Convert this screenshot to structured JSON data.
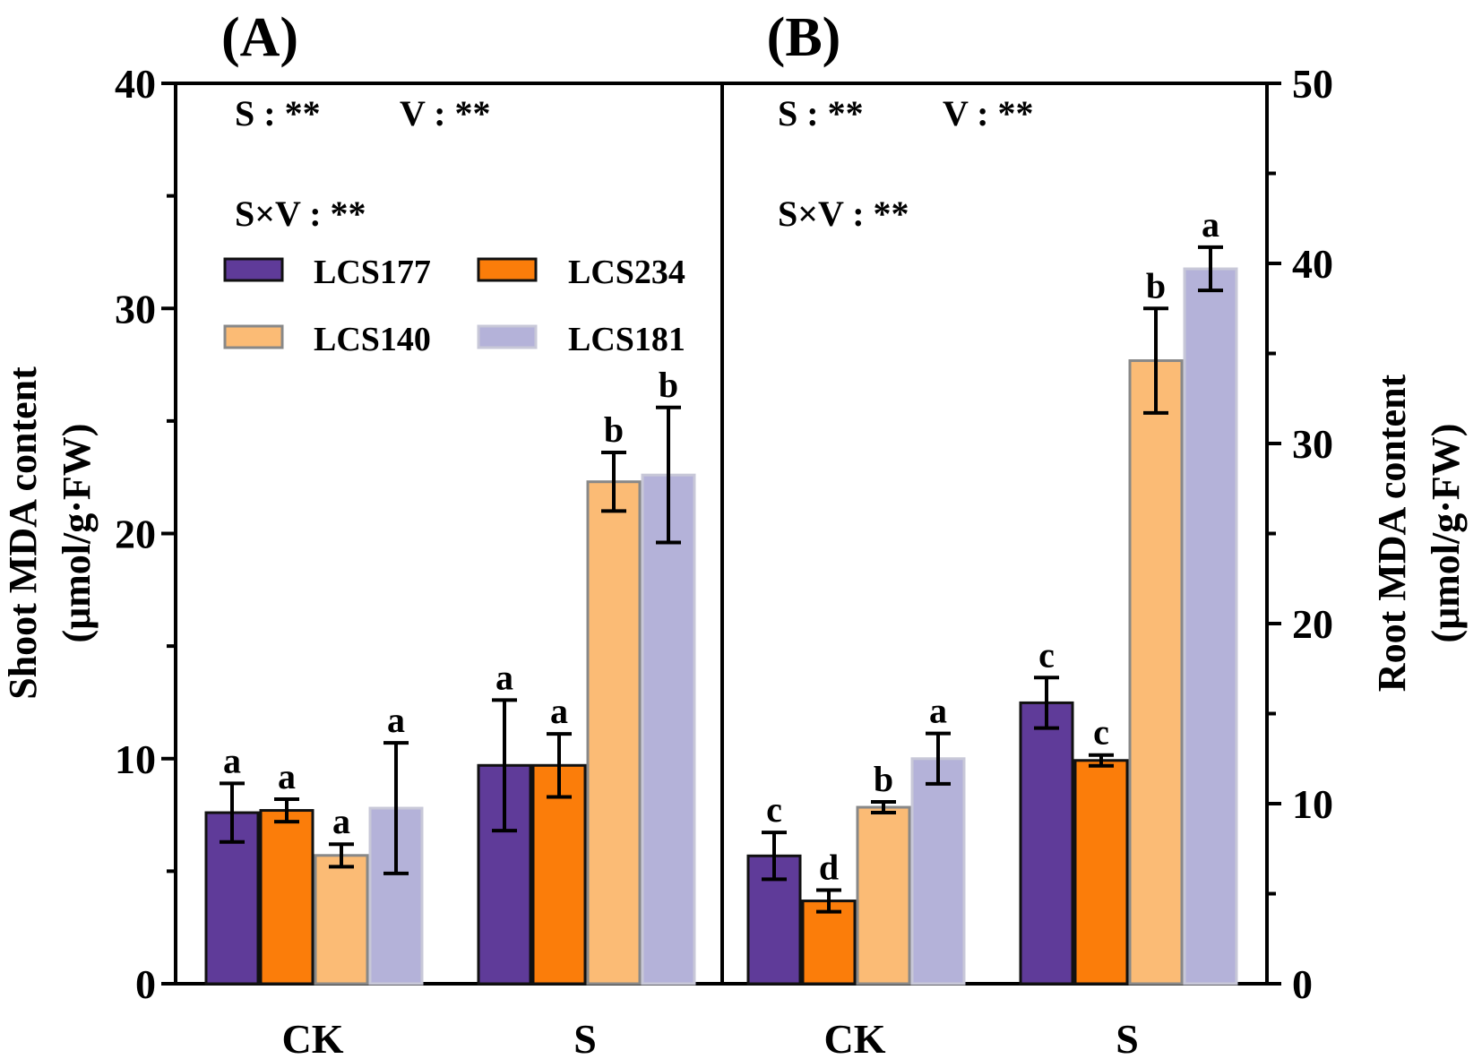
{
  "colors": {
    "LCS177": "#5f3b99",
    "LCS234": "#fb7d0a",
    "LCS140": "#fbbb75",
    "LCS181": "#b4b2d9"
  },
  "chart_data": [
    {
      "type": "bar",
      "panel_label": "(A)",
      "categories": [
        "CK",
        "S"
      ],
      "ylabel_line1": "Shoot MDA content",
      "ylabel_line2": "(μmol/g·FW)",
      "ylim": [
        0,
        40
      ],
      "yticks": [
        "0",
        "10",
        "20",
        "30",
        "40"
      ],
      "stats": {
        "s": "S : **",
        "v": "V : **",
        "sxv": "S×V : **"
      },
      "legend": [
        "LCS177",
        "LCS234",
        "LCS140",
        "LCS181"
      ],
      "series": [
        {
          "name": "LCS177",
          "values": [
            7.6,
            9.7
          ],
          "errors": [
            1.3,
            2.9
          ],
          "letters": [
            "a",
            "a"
          ]
        },
        {
          "name": "LCS234",
          "values": [
            7.7,
            9.7
          ],
          "errors": [
            0.5,
            1.4
          ],
          "letters": [
            "a",
            "a"
          ]
        },
        {
          "name": "LCS140",
          "values": [
            5.7,
            22.3
          ],
          "errors": [
            0.5,
            1.3
          ],
          "letters": [
            "a",
            "b"
          ]
        },
        {
          "name": "LCS181",
          "values": [
            7.8,
            22.6
          ],
          "errors": [
            2.9,
            3.0
          ],
          "letters": [
            "a",
            "b"
          ]
        }
      ]
    },
    {
      "type": "bar",
      "panel_label": "(B)",
      "categories": [
        "CK",
        "S"
      ],
      "ylabel_line1": "Root MDA content",
      "ylabel_line2": "(μmol/g·FW)",
      "ylim": [
        0,
        50
      ],
      "yticks": [
        "0",
        "10",
        "20",
        "30",
        "40",
        "50"
      ],
      "stats": {
        "s": "S : **",
        "v": "V : **",
        "sxv": "S×V : **"
      },
      "series": [
        {
          "name": "LCS177",
          "values": [
            7.1,
            15.6
          ],
          "errors": [
            1.3,
            1.4
          ],
          "letters": [
            "c",
            "c"
          ]
        },
        {
          "name": "LCS234",
          "values": [
            4.6,
            12.4
          ],
          "errors": [
            0.6,
            0.3
          ],
          "letters": [
            "d",
            "c"
          ]
        },
        {
          "name": "LCS140",
          "values": [
            9.8,
            34.6
          ],
          "errors": [
            0.3,
            2.9
          ],
          "letters": [
            "b",
            "b"
          ]
        },
        {
          "name": "LCS181",
          "values": [
            12.5,
            39.7
          ],
          "errors": [
            1.4,
            1.2
          ],
          "letters": [
            "a",
            "a"
          ]
        }
      ]
    }
  ]
}
